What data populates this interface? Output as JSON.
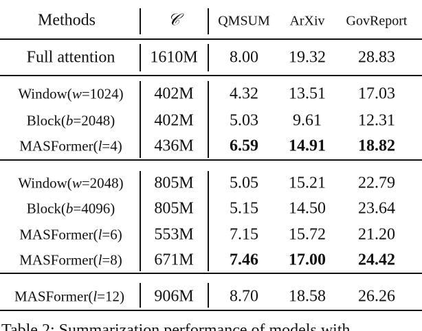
{
  "header": {
    "methods": "Methods",
    "c": "𝒞",
    "datasets": [
      "QMSUM",
      "ArXiv",
      "GovReport"
    ]
  },
  "table": {
    "groups": [
      {
        "rows": [
          {
            "method": [
              "Full attention"
            ],
            "params": "1610M",
            "scores": [
              "8.00",
              "19.32",
              "28.83"
            ],
            "bold": false
          }
        ]
      },
      {
        "rows": [
          {
            "method": [
              "Window(",
              "w",
              "=1024)"
            ],
            "params": "402M",
            "scores": [
              "4.32",
              "13.51",
              "17.03"
            ],
            "bold": false
          },
          {
            "method": [
              "Block(",
              "b",
              "=2048)"
            ],
            "params": "402M",
            "scores": [
              "5.03",
              "9.61",
              "12.31"
            ],
            "bold": false
          },
          {
            "method": [
              "MASFormer(",
              "l",
              "=4)"
            ],
            "params": "436M",
            "scores": [
              "6.59",
              "14.91",
              "18.82"
            ],
            "bold": true
          }
        ]
      },
      {
        "rows": [
          {
            "method": [
              "Window(",
              "w",
              "=2048)"
            ],
            "params": "805M",
            "scores": [
              "5.05",
              "15.21",
              "22.79"
            ],
            "bold": false
          },
          {
            "method": [
              "Block(",
              "b",
              "=4096)"
            ],
            "params": "805M",
            "scores": [
              "5.15",
              "14.50",
              "23.64"
            ],
            "bold": false
          },
          {
            "method": [
              "MASFormer(",
              "l",
              "=6)"
            ],
            "params": "553M",
            "scores": [
              "7.15",
              "15.72",
              "21.20"
            ],
            "bold": false
          },
          {
            "method": [
              "MASFormer(",
              "l",
              "=8)"
            ],
            "params": "671M",
            "scores": [
              "7.46",
              "17.00",
              "24.42"
            ],
            "bold": true
          }
        ]
      },
      {
        "rows": [
          {
            "method": [
              "MASFormer(",
              "l",
              "=12)"
            ],
            "params": "906M",
            "scores": [
              "8.70",
              "18.58",
              "26.26"
            ],
            "bold": false
          }
        ]
      }
    ]
  },
  "caption": "Table 2: Summarization performance of models with"
}
